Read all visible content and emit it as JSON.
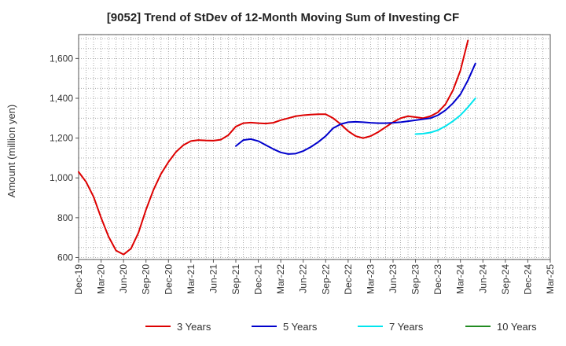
{
  "chart_data": {
    "type": "line",
    "title": "[9052]  Trend of StDev of 12-Month Moving Sum of Investing CF",
    "xlabel": "",
    "ylabel": "Amount (million yen)",
    "ylim": [
      590,
      1720
    ],
    "yticks": [
      600,
      800,
      1000,
      1200,
      1400,
      1600
    ],
    "ytick_labels": [
      "600",
      "800",
      "1,000",
      "1,200",
      "1,400",
      "1,600"
    ],
    "x_ticks": [
      "Dec-19",
      "Mar-20",
      "Jun-20",
      "Sep-20",
      "Dec-20",
      "Mar-21",
      "Jun-21",
      "Sep-21",
      "Dec-21",
      "Mar-22",
      "Jun-22",
      "Sep-22",
      "Dec-22",
      "Mar-23",
      "Jun-23",
      "Sep-23",
      "Dec-23",
      "Mar-24",
      "Jun-24",
      "Sep-24",
      "Dec-24",
      "Mar-25"
    ],
    "grid": true,
    "legend_position": "bottom",
    "series": [
      {
        "name": "3 Years",
        "color": "#dd0000",
        "start_index": 0,
        "values": [
          1030,
          980,
          905,
          800,
          705,
          635,
          615,
          645,
          725,
          840,
          940,
          1020,
          1080,
          1130,
          1165,
          1185,
          1190,
          1188,
          1187,
          1192,
          1215,
          1258,
          1275,
          1278,
          1275,
          1273,
          1277,
          1290,
          1300,
          1310,
          1315,
          1318,
          1320,
          1320,
          1300,
          1270,
          1235,
          1210,
          1200,
          1210,
          1230,
          1255,
          1280,
          1300,
          1310,
          1305,
          1300,
          1310,
          1330,
          1370,
          1440,
          1540,
          1690
        ]
      },
      {
        "name": "5 Years",
        "color": "#0000cc",
        "start_index": 21,
        "values": [
          1160,
          1190,
          1195,
          1185,
          1165,
          1145,
          1128,
          1120,
          1122,
          1135,
          1155,
          1180,
          1210,
          1250,
          1270,
          1280,
          1282,
          1280,
          1277,
          1275,
          1275,
          1277,
          1280,
          1285,
          1290,
          1295,
          1300,
          1315,
          1340,
          1375,
          1420,
          1490,
          1575
        ]
      },
      {
        "name": "7 Years",
        "color": "#00e5ee",
        "start_index": 45,
        "values": [
          1220,
          1222,
          1228,
          1240,
          1260,
          1285,
          1315,
          1355,
          1400
        ]
      },
      {
        "name": "10 Years",
        "color": "#228b22",
        "start_index": 53,
        "values": []
      }
    ]
  }
}
